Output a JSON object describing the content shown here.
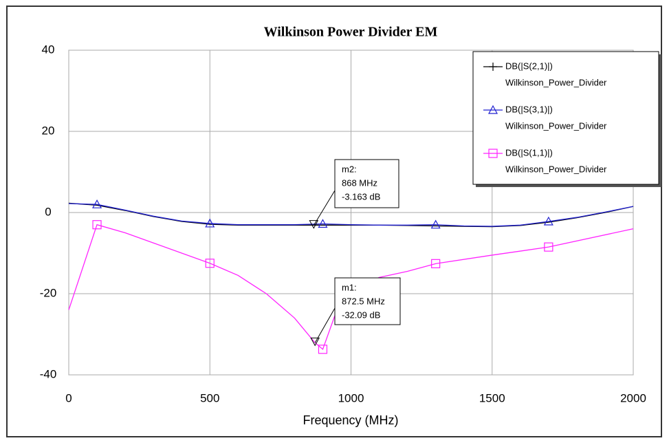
{
  "chart_data": {
    "type": "line",
    "title": "Wilkinson Power Divider EM",
    "x_label": "Frequency (MHz)",
    "xlim": [
      0,
      2000
    ],
    "xticks": [
      0,
      500,
      1000,
      1500,
      2000
    ],
    "ylim": [
      -40,
      40
    ],
    "yticks": [
      -40,
      -20,
      0,
      20,
      40
    ],
    "grid": true,
    "legend": "upper right",
    "series": [
      {
        "name": "DB(|S(2,1)|)",
        "sublabel": "Wilkinson_Power_Divider",
        "color": "#000000",
        "marker": "plus",
        "x": [
          0,
          100,
          200,
          300,
          400,
          500,
          600,
          700,
          800,
          900,
          1000,
          1100,
          1200,
          1300,
          1400,
          1500,
          1600,
          1700,
          1800,
          1900,
          2000
        ],
        "values": [
          2.3,
          1.8,
          0.5,
          -1,
          -2.2,
          -2.9,
          -3.1,
          -3.1,
          -3.1,
          -3.1,
          -3.1,
          -3.1,
          -3.2,
          -3.3,
          -3.4,
          -3.5,
          -3.2,
          -2.4,
          -1.3,
          0,
          1.5
        ]
      },
      {
        "name": "DB(|S(3,1)|)",
        "sublabel": "Wilkinson_Power_Divider",
        "color": "#2020d0",
        "marker": "triangle",
        "x": [
          0,
          100,
          200,
          300,
          400,
          500,
          600,
          700,
          800,
          900,
          1000,
          1100,
          1200,
          1300,
          1400,
          1500,
          1600,
          1700,
          1800,
          1900,
          2000
        ],
        "values": [
          2.2,
          2,
          0.6,
          -0.9,
          -2.1,
          -2.7,
          -3,
          -3,
          -3,
          -2.8,
          -3,
          -3.1,
          -3.1,
          -3,
          -3.3,
          -3.4,
          -3.1,
          -2.2,
          -1.2,
          0.1,
          1.5
        ],
        "marker_points": {
          "x": [
            100,
            500,
            900,
            1300,
            1700
          ],
          "values": [
            2,
            -2.7,
            -2.8,
            -3,
            -2.2
          ]
        }
      },
      {
        "name": "DB(|S(1,1)|)",
        "sublabel": "Wilkinson_Power_Divider",
        "color": "#ff22ff",
        "marker": "square",
        "x": [
          0,
          100,
          200,
          300,
          400,
          500,
          600,
          700,
          800,
          872.5,
          900,
          950,
          1000,
          1100,
          1200,
          1300,
          1500,
          1700,
          2000
        ],
        "values": [
          -24,
          -3,
          -5,
          -7.5,
          -10,
          -12.5,
          -15.5,
          -20,
          -26,
          -32.09,
          -33.7,
          -24,
          -19,
          -16,
          -14.5,
          -12.6,
          -10.5,
          -8.5,
          -4
        ],
        "marker_points": {
          "x": [
            100,
            500,
            900,
            1300,
            1700
          ],
          "values": [
            -3,
            -12.5,
            -33.7,
            -12.6,
            -8.5
          ]
        }
      }
    ],
    "annotations": [
      {
        "name": "m2:",
        "x": 868,
        "y": -3.163,
        "x_label": "868 MHz",
        "y_label": "-3.163 dB"
      },
      {
        "name": "m1:",
        "x": 872.5,
        "y": -32.09,
        "x_label": "872.5 MHz",
        "y_label": "-32.09 dB"
      }
    ]
  }
}
